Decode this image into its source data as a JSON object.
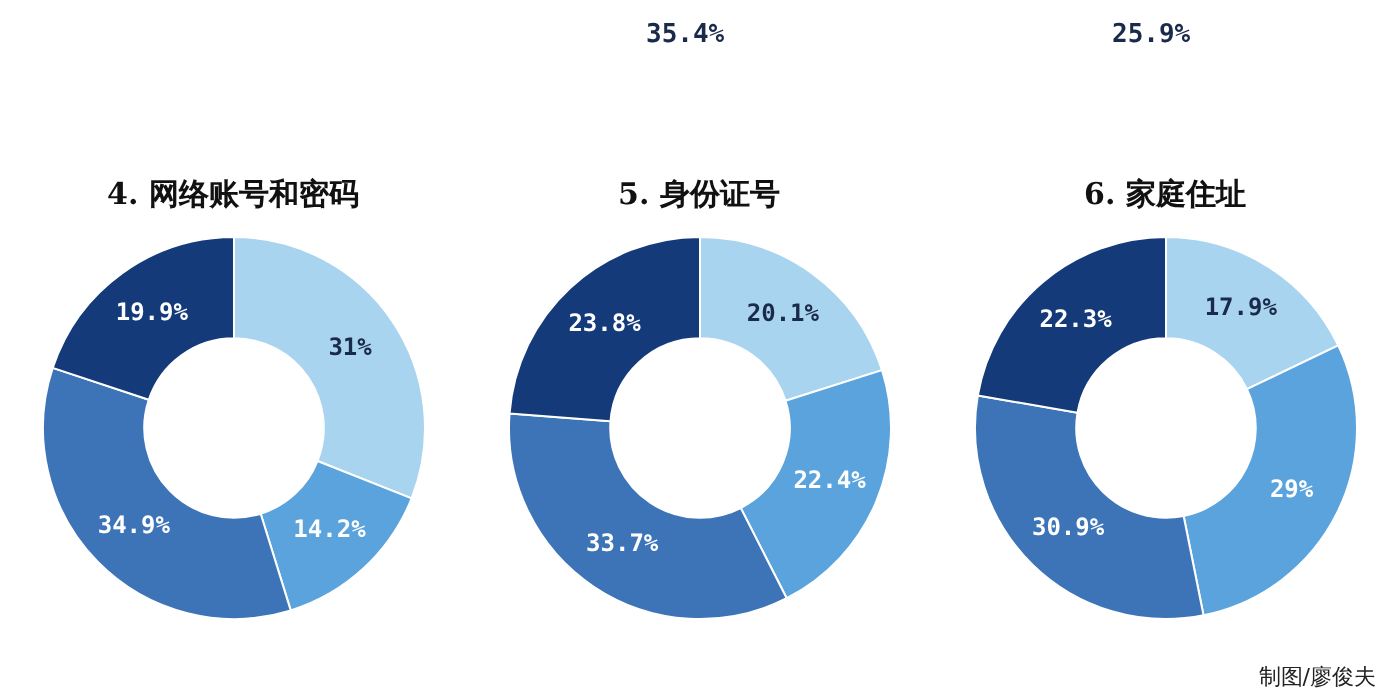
{
  "chart_data": [
    {
      "type": "other",
      "annotations": [
        "35.4%",
        "25.9%"
      ]
    },
    {
      "type": "donut",
      "title": "4. 网络账号和密码",
      "categories": [
        null,
        null,
        null,
        null
      ],
      "values": [
        31,
        14.2,
        34.9,
        19.9
      ],
      "colors": [
        "#a9d4ef",
        "#5aa3dc",
        "#3d74b8",
        "#143a7a"
      ],
      "value_labels": [
        "31%",
        "14.2%",
        "34.9%",
        "19.9%"
      ]
    },
    {
      "type": "donut",
      "title": "5. 身份证号",
      "categories": [
        null,
        null,
        null,
        null
      ],
      "values": [
        20.1,
        22.4,
        33.7,
        23.8
      ],
      "colors": [
        "#a9d4ef",
        "#5aa3dc",
        "#3d74b8",
        "#143a7a"
      ],
      "value_labels": [
        "20.1%",
        "22.4%",
        "33.7%",
        "23.8%"
      ]
    },
    {
      "type": "donut",
      "title": "6. 家庭住址",
      "categories": [
        null,
        null,
        null,
        null
      ],
      "values": [
        17.9,
        29,
        30.9,
        22.3
      ],
      "colors": [
        "#a9d4ef",
        "#5aa3dc",
        "#3d74b8",
        "#143a7a"
      ],
      "value_labels": [
        "17.9%",
        "29%",
        "30.9%",
        "22.3%"
      ],
      "annotations": [
        "制图/廖俊夫"
      ]
    }
  ]
}
